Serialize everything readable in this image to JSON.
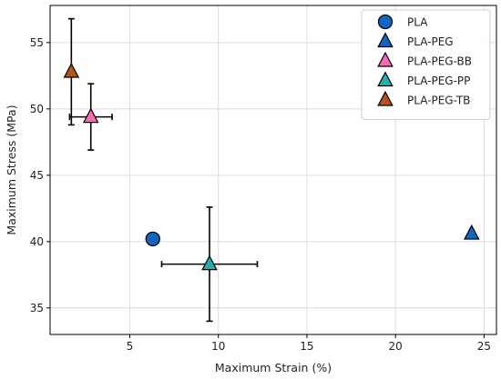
{
  "chart_data": {
    "type": "scatter",
    "xlabel": "Maximum Strain (%)",
    "ylabel": "Maximum Stress (MPa)",
    "xlim": [
      0.5,
      25.7
    ],
    "ylim": [
      33,
      57.8
    ],
    "xticks": [
      5,
      10,
      15,
      20,
      25
    ],
    "yticks": [
      35,
      40,
      45,
      50,
      55
    ],
    "grid": true,
    "legend_position": "top-right",
    "series": [
      {
        "name": "PLA",
        "marker": "circle",
        "color": "#1565c0",
        "x": 6.3,
        "y": 40.2,
        "x_err": 0,
        "y_err": 0
      },
      {
        "name": "PLA-PEG",
        "marker": "triangle",
        "color": "#1565c0",
        "x": 24.3,
        "y": 40.6,
        "x_err": 0,
        "y_err": 0.2
      },
      {
        "name": "PLA-PEG-BB",
        "marker": "triangle",
        "color": "#ff69b4",
        "x": 2.8,
        "y": 49.4,
        "x_err": 1.2,
        "y_err": 2.5
      },
      {
        "name": "PLA-PEG-PP",
        "marker": "triangle",
        "color": "#20b2aa",
        "x": 9.5,
        "y": 38.3,
        "x_err": 2.7,
        "y_err": 4.3
      },
      {
        "name": "PLA-PEG-TB",
        "marker": "triangle",
        "color": "#b5541a",
        "x": 1.7,
        "y": 52.8,
        "x_err": 0,
        "y_err": 4.0
      }
    ]
  }
}
